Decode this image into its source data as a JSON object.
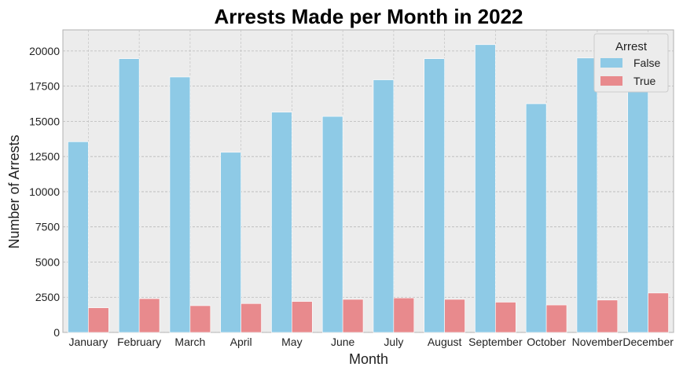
{
  "chart_data": {
    "type": "bar",
    "title": "Arrests Made per Month in 2022",
    "xlabel": "Month",
    "ylabel": "Number of Arrests",
    "categories": [
      "January",
      "February",
      "March",
      "April",
      "May",
      "June",
      "July",
      "August",
      "September",
      "October",
      "November",
      "December"
    ],
    "series": [
      {
        "name": "False",
        "color": "#8ecae6",
        "values": [
          13550,
          19450,
          18150,
          12800,
          15650,
          15350,
          17950,
          19450,
          20450,
          16250,
          19500,
          17100
        ]
      },
      {
        "name": "True",
        "color": "#e88a8d",
        "values": [
          1750,
          2400,
          1900,
          2050,
          2200,
          2350,
          2450,
          2350,
          2150,
          1950,
          2300,
          2800
        ]
      }
    ],
    "ylim": [
      0,
      21500
    ],
    "yticks": [
      0,
      2500,
      5000,
      7500,
      10000,
      12500,
      15000,
      17500,
      20000
    ],
    "grid": true,
    "legend": {
      "title": "Arrest",
      "placement": "top-right"
    },
    "background_color": "#ececec"
  }
}
